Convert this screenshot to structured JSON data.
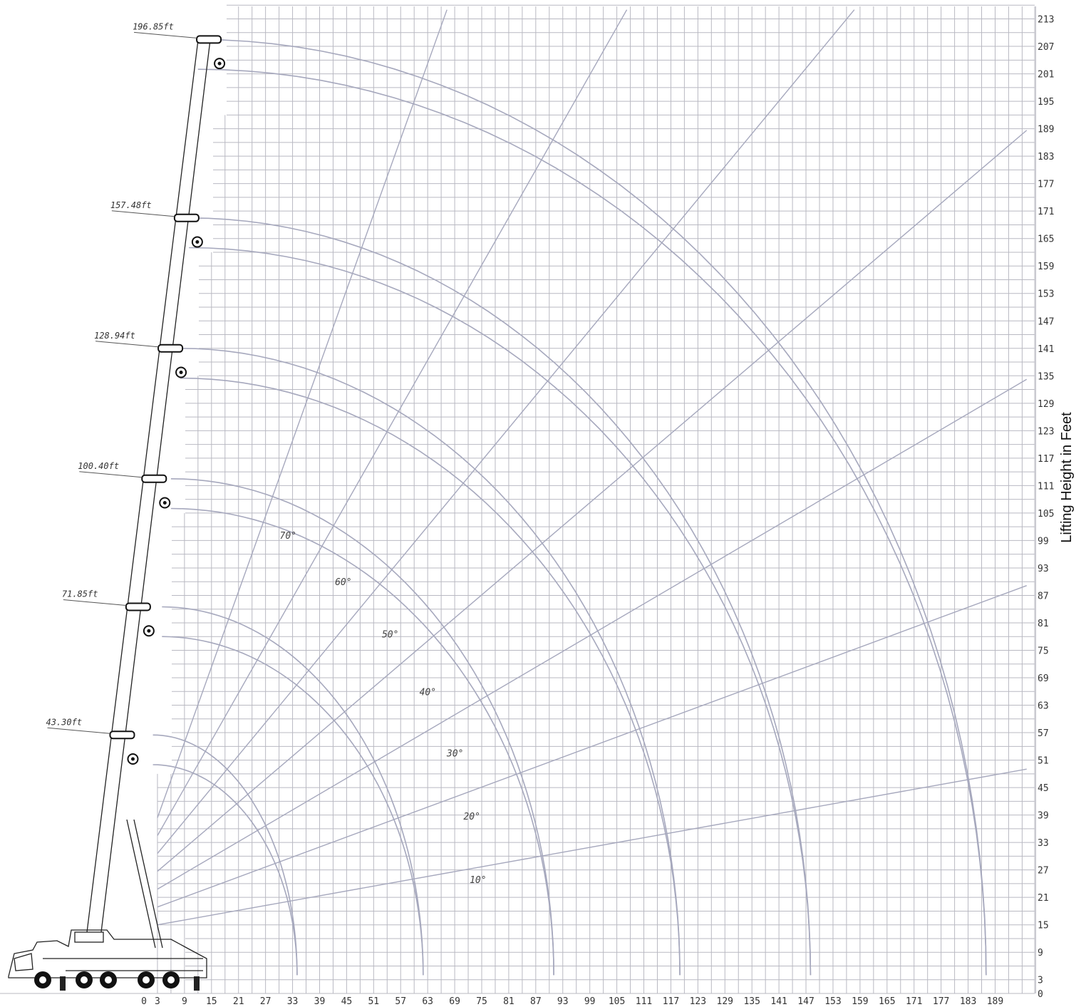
{
  "chart_data": {
    "type": "range-diagram",
    "ylabel": "Lifting Height in Feet",
    "xlabel": "",
    "x_ticks": [
      0,
      3,
      9,
      15,
      21,
      27,
      33,
      39,
      45,
      51,
      57,
      63,
      69,
      75,
      81,
      87,
      93,
      99,
      105,
      111,
      117,
      123,
      129,
      135,
      141,
      147,
      153,
      159,
      165,
      171,
      177,
      183,
      189
    ],
    "y_ticks": [
      0,
      3,
      9,
      15,
      21,
      27,
      33,
      39,
      45,
      51,
      57,
      63,
      69,
      75,
      81,
      87,
      93,
      99,
      105,
      111,
      117,
      123,
      129,
      135,
      141,
      147,
      153,
      159,
      165,
      171,
      177,
      183,
      189,
      195,
      201,
      207,
      213
    ],
    "xlim": [
      0,
      196
    ],
    "ylim": [
      0,
      213
    ],
    "grid": true,
    "boom_lengths": [
      {
        "label": "43.30ft",
        "tip_height": 56.5,
        "hook_height": 50.0,
        "reach_at_zero": 34
      },
      {
        "label": "71.85ft",
        "tip_height": 84.5,
        "hook_height": 78.0,
        "reach_at_zero": 62
      },
      {
        "label": "100.40ft",
        "tip_height": 112.5,
        "hook_height": 106.0,
        "reach_at_zero": 91
      },
      {
        "label": "128.94ft",
        "tip_height": 141.0,
        "hook_height": 134.5,
        "reach_at_zero": 119
      },
      {
        "label": "157.48ft",
        "tip_height": 169.5,
        "hook_height": 163.0,
        "reach_at_zero": 148
      },
      {
        "label": "196.85ft",
        "tip_height": 208.5,
        "hook_height": 202.0,
        "reach_at_zero": 187
      }
    ],
    "angle_lines": [
      {
        "label": "10°",
        "angle": 10
      },
      {
        "label": "20°",
        "angle": 20
      },
      {
        "label": "30°",
        "angle": 30
      },
      {
        "label": "40°",
        "angle": 40
      },
      {
        "label": "50°",
        "angle": 50
      },
      {
        "label": "60°",
        "angle": 60
      },
      {
        "label": "70°",
        "angle": 70
      }
    ]
  }
}
